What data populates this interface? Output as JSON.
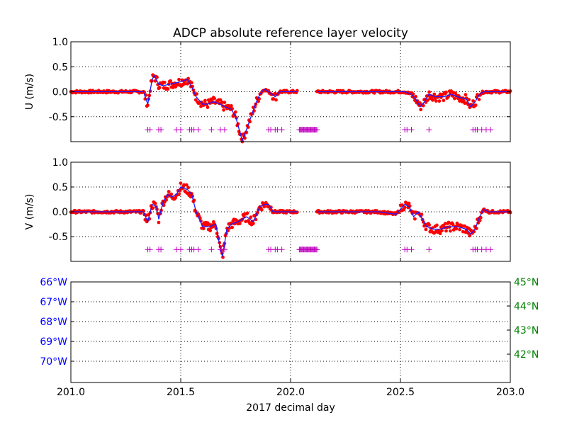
{
  "title": "ADCP absolute reference layer velocity",
  "xlabel": "2017 decimal day",
  "xlim": [
    201.0,
    203.0
  ],
  "xticks": [
    "201.0",
    "201.5",
    "202.0",
    "202.5",
    "203.0"
  ],
  "colors": {
    "points": "#ff0000",
    "line": "#1a1aff",
    "flags": "#bf00bf",
    "lon_axis": "#0000ff",
    "lat_axis": "#008000"
  },
  "chart_data": [
    {
      "type": "scatter",
      "ylabel": "U (m/s)",
      "ylim": [
        -1.0,
        1.0
      ],
      "yticks": [
        "1.0",
        "0.5",
        "0.0",
        "-0.5"
      ],
      "grid": true,
      "series": [
        {
          "x": [
            201.0,
            201.05,
            201.1,
            201.15,
            201.2,
            201.25,
            201.3,
            201.33,
            201.35,
            201.37,
            201.38,
            201.4,
            201.42,
            201.45,
            201.5,
            201.53,
            201.55,
            201.57,
            201.6,
            201.62,
            201.65,
            201.68,
            201.7,
            201.73,
            201.75,
            201.78,
            201.8,
            201.82,
            201.84,
            201.86,
            201.88,
            201.9,
            201.93,
            201.95,
            202.0,
            202.03
          ],
          "values": [
            0.0,
            0.0,
            0.0,
            0.0,
            0.0,
            0.0,
            0.0,
            0.0,
            -0.25,
            0.25,
            0.32,
            0.15,
            0.12,
            0.15,
            0.2,
            0.25,
            0.1,
            -0.1,
            -0.25,
            -0.25,
            -0.2,
            -0.25,
            -0.3,
            -0.35,
            -0.5,
            -0.98,
            -0.75,
            -0.5,
            -0.25,
            -0.05,
            0.05,
            0.0,
            -0.1,
            0.0,
            0.0,
            0.0
          ]
        },
        {
          "x": [
            202.12,
            202.2,
            202.3,
            202.4,
            202.48,
            202.52,
            202.55,
            202.57,
            202.59,
            202.61,
            202.63,
            202.66,
            202.7,
            202.73,
            202.76,
            202.8,
            202.82,
            202.84,
            202.86,
            202.88,
            202.9,
            202.93,
            202.96,
            203.0
          ],
          "values": [
            0.0,
            0.0,
            0.0,
            0.0,
            0.0,
            0.0,
            -0.05,
            -0.15,
            -0.3,
            -0.2,
            -0.05,
            -0.1,
            -0.1,
            -0.05,
            -0.1,
            -0.15,
            -0.3,
            -0.2,
            -0.05,
            0.0,
            0.0,
            0.0,
            0.0,
            0.0
          ]
        }
      ],
      "flags_x": [
        201.35,
        201.36,
        201.4,
        201.41,
        201.48,
        201.5,
        201.54,
        201.55,
        201.56,
        201.58,
        201.64,
        201.68,
        201.7,
        201.9,
        201.91,
        201.93,
        201.94,
        201.96,
        202.52,
        202.53,
        202.55,
        202.63,
        202.83,
        202.84,
        202.85,
        202.87,
        202.89,
        202.91
      ]
    },
    {
      "type": "scatter",
      "ylabel": "V (m/s)",
      "ylim": [
        -1.0,
        1.0
      ],
      "yticks": [
        "1.0",
        "0.5",
        "0.0",
        "-0.5"
      ],
      "grid": true,
      "series": [
        {
          "x": [
            201.0,
            201.05,
            201.1,
            201.15,
            201.2,
            201.25,
            201.3,
            201.33,
            201.35,
            201.37,
            201.39,
            201.4,
            201.42,
            201.44,
            201.46,
            201.48,
            201.5,
            201.53,
            201.55,
            201.57,
            201.6,
            201.63,
            201.66,
            201.68,
            201.69,
            201.71,
            201.73,
            201.76,
            201.8,
            201.83,
            201.86,
            201.88,
            201.9,
            201.92,
            201.95,
            202.0,
            202.03
          ],
          "values": [
            0.0,
            0.0,
            0.0,
            0.0,
            0.0,
            0.0,
            0.0,
            0.0,
            -0.2,
            0.15,
            0.1,
            -0.15,
            0.2,
            0.35,
            0.3,
            0.35,
            0.5,
            0.45,
            0.35,
            0.0,
            -0.3,
            -0.3,
            -0.25,
            -0.75,
            -0.9,
            -0.35,
            -0.25,
            -0.2,
            -0.1,
            -0.2,
            0.1,
            0.15,
            0.15,
            0.0,
            0.0,
            0.0,
            0.0
          ]
        },
        {
          "x": [
            202.12,
            202.2,
            202.3,
            202.4,
            202.48,
            202.52,
            202.54,
            202.56,
            202.58,
            202.6,
            202.62,
            202.65,
            202.68,
            202.72,
            202.76,
            202.8,
            202.82,
            202.84,
            202.86,
            202.88,
            202.9,
            202.95,
            203.0
          ],
          "values": [
            0.0,
            0.0,
            0.0,
            0.0,
            -0.05,
            0.15,
            0.1,
            -0.1,
            0.0,
            -0.15,
            -0.3,
            -0.35,
            -0.35,
            -0.3,
            -0.3,
            -0.35,
            -0.45,
            -0.35,
            -0.1,
            0.05,
            0.0,
            0.0,
            0.0
          ]
        }
      ],
      "flags_x": [
        201.35,
        201.36,
        201.4,
        201.41,
        201.48,
        201.5,
        201.54,
        201.55,
        201.56,
        201.58,
        201.64,
        201.68,
        201.7,
        201.9,
        201.91,
        201.93,
        201.94,
        201.96,
        202.52,
        202.53,
        202.55,
        202.63,
        202.83,
        202.84,
        202.85,
        202.87,
        202.89,
        202.91
      ]
    },
    {
      "type": "line",
      "grid": true,
      "left_axis_ticks": [
        "66°W",
        "67°W",
        "68°W",
        "69°W",
        "70°W"
      ],
      "right_axis_ticks": [
        "45°N",
        "44°N",
        "43°N",
        "42°N"
      ],
      "series": []
    }
  ]
}
